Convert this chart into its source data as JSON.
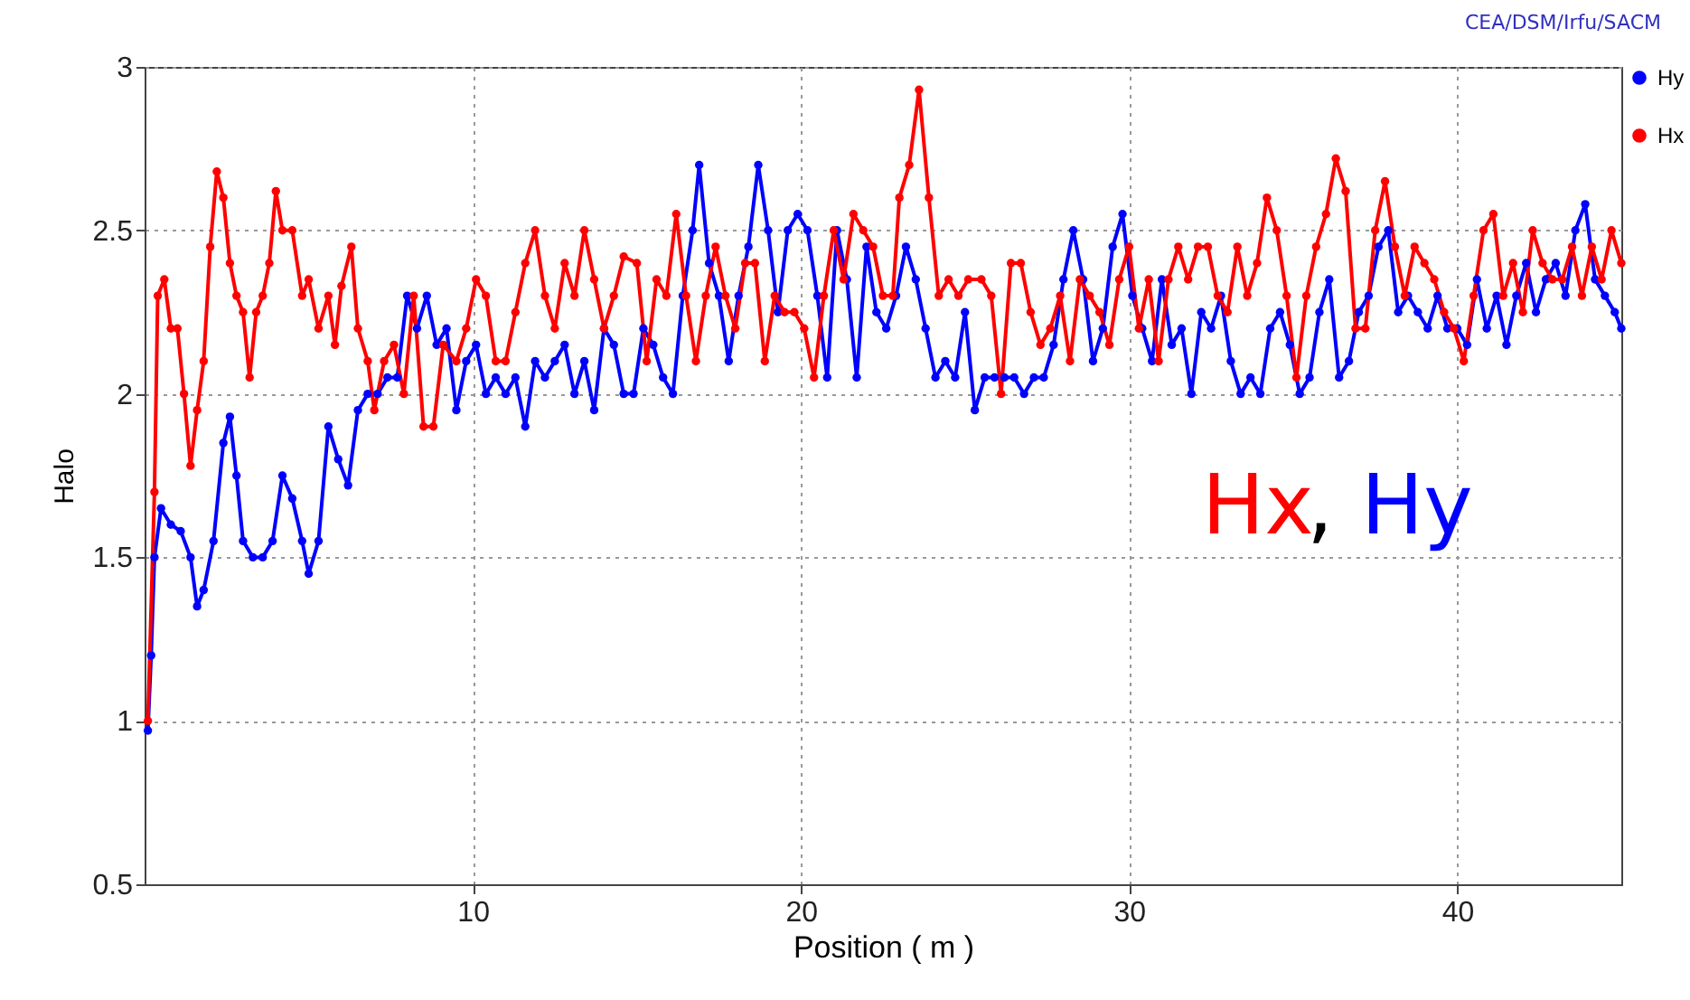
{
  "chart_data": {
    "type": "line",
    "xlabel": "Position ( m )",
    "ylabel": "Halo",
    "annotations": [
      "CEA/DSM/Irfu/SACM",
      "Hx, Hy"
    ],
    "xlim": [
      0,
      45
    ],
    "xticks": [
      10,
      20,
      30,
      40
    ],
    "ylim": [
      0.5,
      3
    ],
    "yticks": [
      0.5,
      1,
      1.5,
      2,
      2.5,
      3
    ],
    "grid": true,
    "legend": "top right",
    "marker": "circle",
    "line_style": "solid",
    "series": [
      {
        "name": "Hy",
        "color": "#0000ff",
        "x": [
          0.1,
          0.2,
          0.3,
          0.5,
          0.8,
          1.1,
          1.4,
          1.6,
          1.8,
          2.1,
          2.4,
          2.6,
          2.8,
          3.0,
          3.3,
          3.6,
          3.9,
          4.2,
          4.5,
          4.8,
          5.0,
          5.3,
          5.6,
          5.9,
          6.2,
          6.5,
          6.8,
          7.1,
          7.4,
          7.7,
          8.0,
          8.3,
          8.6,
          8.9,
          9.2,
          9.5,
          9.8,
          10.1,
          10.4,
          10.7,
          11.0,
          11.3,
          11.6,
          11.9,
          12.2,
          12.5,
          12.8,
          13.1,
          13.4,
          13.7,
          14.0,
          14.3,
          14.6,
          14.9,
          15.2,
          15.5,
          15.8,
          16.1,
          16.4,
          16.7,
          16.9,
          17.2,
          17.5,
          17.8,
          18.1,
          18.4,
          18.7,
          19.0,
          19.3,
          19.6,
          19.9,
          20.2,
          20.5,
          20.8,
          21.1,
          21.4,
          21.7,
          22.0,
          22.3,
          22.6,
          22.9,
          23.2,
          23.5,
          23.8,
          24.1,
          24.4,
          24.7,
          25.0,
          25.3,
          25.6,
          25.9,
          26.2,
          26.5,
          26.8,
          27.1,
          27.4,
          27.7,
          28.0,
          28.3,
          28.6,
          28.9,
          29.2,
          29.5,
          29.8,
          30.1,
          30.4,
          30.7,
          31.0,
          31.3,
          31.6,
          31.9,
          32.2,
          32.5,
          32.8,
          33.1,
          33.4,
          33.7,
          34.0,
          34.3,
          34.6,
          34.9,
          35.2,
          35.5,
          35.8,
          36.1,
          36.4,
          36.7,
          37.0,
          37.3,
          37.6,
          37.9,
          38.2,
          38.5,
          38.8,
          39.1,
          39.4,
          39.7,
          40.0,
          40.3,
          40.6,
          40.9,
          41.2,
          41.5,
          41.8,
          42.1,
          42.4,
          42.7,
          43.0,
          43.3,
          43.6,
          43.9,
          44.2,
          44.5,
          44.8,
          45.0
        ],
        "values": [
          0.97,
          1.2,
          1.5,
          1.65,
          1.6,
          1.58,
          1.5,
          1.35,
          1.4,
          1.55,
          1.85,
          1.93,
          1.75,
          1.55,
          1.5,
          1.5,
          1.55,
          1.75,
          1.68,
          1.55,
          1.45,
          1.55,
          1.9,
          1.8,
          1.72,
          1.95,
          2.0,
          2.0,
          2.05,
          2.05,
          2.3,
          2.2,
          2.3,
          2.15,
          2.2,
          1.95,
          2.1,
          2.15,
          2.0,
          2.05,
          2.0,
          2.05,
          1.9,
          2.1,
          2.05,
          2.1,
          2.15,
          2.0,
          2.1,
          1.95,
          2.2,
          2.15,
          2.0,
          2.0,
          2.2,
          2.15,
          2.05,
          2.0,
          2.3,
          2.5,
          2.7,
          2.4,
          2.3,
          2.1,
          2.3,
          2.45,
          2.7,
          2.5,
          2.25,
          2.5,
          2.55,
          2.5,
          2.3,
          2.05,
          2.5,
          2.35,
          2.05,
          2.45,
          2.25,
          2.2,
          2.3,
          2.45,
          2.35,
          2.2,
          2.05,
          2.1,
          2.05,
          2.25,
          1.95,
          2.05,
          2.05,
          2.05,
          2.05,
          2.0,
          2.05,
          2.05,
          2.15,
          2.35,
          2.5,
          2.35,
          2.1,
          2.2,
          2.45,
          2.55,
          2.3,
          2.2,
          2.1,
          2.35,
          2.15,
          2.2,
          2.0,
          2.25,
          2.2,
          2.3,
          2.1,
          2.0,
          2.05,
          2.0,
          2.2,
          2.25,
          2.15,
          2.0,
          2.05,
          2.25,
          2.35,
          2.05,
          2.1,
          2.25,
          2.3,
          2.45,
          2.5,
          2.25,
          2.3,
          2.25,
          2.2,
          2.3,
          2.2,
          2.2,
          2.15,
          2.35,
          2.2,
          2.3,
          2.15,
          2.3,
          2.4,
          2.25,
          2.35,
          2.4,
          2.3,
          2.5,
          2.58,
          2.35,
          2.3,
          2.25,
          2.2
        ]
      },
      {
        "name": "Hx",
        "color": "#ff0000",
        "x": [
          0.1,
          0.3,
          0.4,
          0.6,
          0.8,
          1.0,
          1.2,
          1.4,
          1.6,
          1.8,
          2.0,
          2.2,
          2.4,
          2.6,
          2.8,
          3.0,
          3.2,
          3.4,
          3.6,
          3.8,
          4.0,
          4.2,
          4.5,
          4.8,
          5.0,
          5.3,
          5.6,
          5.8,
          6.0,
          6.3,
          6.5,
          6.8,
          7.0,
          7.3,
          7.6,
          7.9,
          8.2,
          8.5,
          8.8,
          9.1,
          9.5,
          9.8,
          10.1,
          10.4,
          10.7,
          11.0,
          11.3,
          11.6,
          11.9,
          12.2,
          12.5,
          12.8,
          13.1,
          13.4,
          13.7,
          14.0,
          14.3,
          14.6,
          15.0,
          15.3,
          15.6,
          15.9,
          16.2,
          16.5,
          16.8,
          17.1,
          17.4,
          17.7,
          18.0,
          18.3,
          18.6,
          18.9,
          19.2,
          19.5,
          19.8,
          20.1,
          20.4,
          20.7,
          21.0,
          21.3,
          21.6,
          21.9,
          22.2,
          22.5,
          22.8,
          23.0,
          23.3,
          23.6,
          23.9,
          24.2,
          24.5,
          24.8,
          25.1,
          25.5,
          25.8,
          26.1,
          26.4,
          26.7,
          27.0,
          27.3,
          27.6,
          27.9,
          28.2,
          28.5,
          28.8,
          29.1,
          29.4,
          29.7,
          30.0,
          30.3,
          30.6,
          30.9,
          31.2,
          31.5,
          31.8,
          32.1,
          32.4,
          32.7,
          33.0,
          33.3,
          33.6,
          33.9,
          34.2,
          34.5,
          34.8,
          35.1,
          35.4,
          35.7,
          36.0,
          36.3,
          36.6,
          36.9,
          37.2,
          37.5,
          37.8,
          38.1,
          38.4,
          38.7,
          39.0,
          39.3,
          39.6,
          39.9,
          40.2,
          40.5,
          40.8,
          41.1,
          41.4,
          41.7,
          42.0,
          42.3,
          42.6,
          42.9,
          43.2,
          43.5,
          43.8,
          44.1,
          44.4,
          44.7,
          45.0
        ],
        "values": [
          1.0,
          1.7,
          2.3,
          2.35,
          2.2,
          2.2,
          2.0,
          1.78,
          1.95,
          2.1,
          2.45,
          2.68,
          2.6,
          2.4,
          2.3,
          2.25,
          2.05,
          2.25,
          2.3,
          2.4,
          2.62,
          2.5,
          2.5,
          2.3,
          2.35,
          2.2,
          2.3,
          2.15,
          2.33,
          2.45,
          2.2,
          2.1,
          1.95,
          2.1,
          2.15,
          2.0,
          2.3,
          1.9,
          1.9,
          2.15,
          2.1,
          2.2,
          2.35,
          2.3,
          2.1,
          2.1,
          2.25,
          2.4,
          2.5,
          2.3,
          2.2,
          2.4,
          2.3,
          2.5,
          2.35,
          2.2,
          2.3,
          2.42,
          2.4,
          2.1,
          2.35,
          2.3,
          2.55,
          2.3,
          2.1,
          2.3,
          2.45,
          2.3,
          2.2,
          2.4,
          2.4,
          2.1,
          2.3,
          2.25,
          2.25,
          2.2,
          2.05,
          2.3,
          2.5,
          2.35,
          2.55,
          2.5,
          2.45,
          2.3,
          2.3,
          2.6,
          2.7,
          2.93,
          2.6,
          2.3,
          2.35,
          2.3,
          2.35,
          2.35,
          2.3,
          2.0,
          2.4,
          2.4,
          2.25,
          2.15,
          2.2,
          2.3,
          2.1,
          2.35,
          2.3,
          2.25,
          2.15,
          2.35,
          2.45,
          2.2,
          2.35,
          2.1,
          2.35,
          2.45,
          2.35,
          2.45,
          2.45,
          2.3,
          2.25,
          2.45,
          2.3,
          2.4,
          2.6,
          2.5,
          2.3,
          2.05,
          2.3,
          2.45,
          2.55,
          2.72,
          2.62,
          2.2,
          2.2,
          2.5,
          2.65,
          2.45,
          2.3,
          2.45,
          2.4,
          2.35,
          2.25,
          2.2,
          2.1,
          2.3,
          2.5,
          2.55,
          2.3,
          2.4,
          2.25,
          2.5,
          2.4,
          2.35,
          2.35,
          2.45,
          2.3,
          2.45,
          2.35,
          2.5,
          2.4
        ]
      }
    ]
  }
}
